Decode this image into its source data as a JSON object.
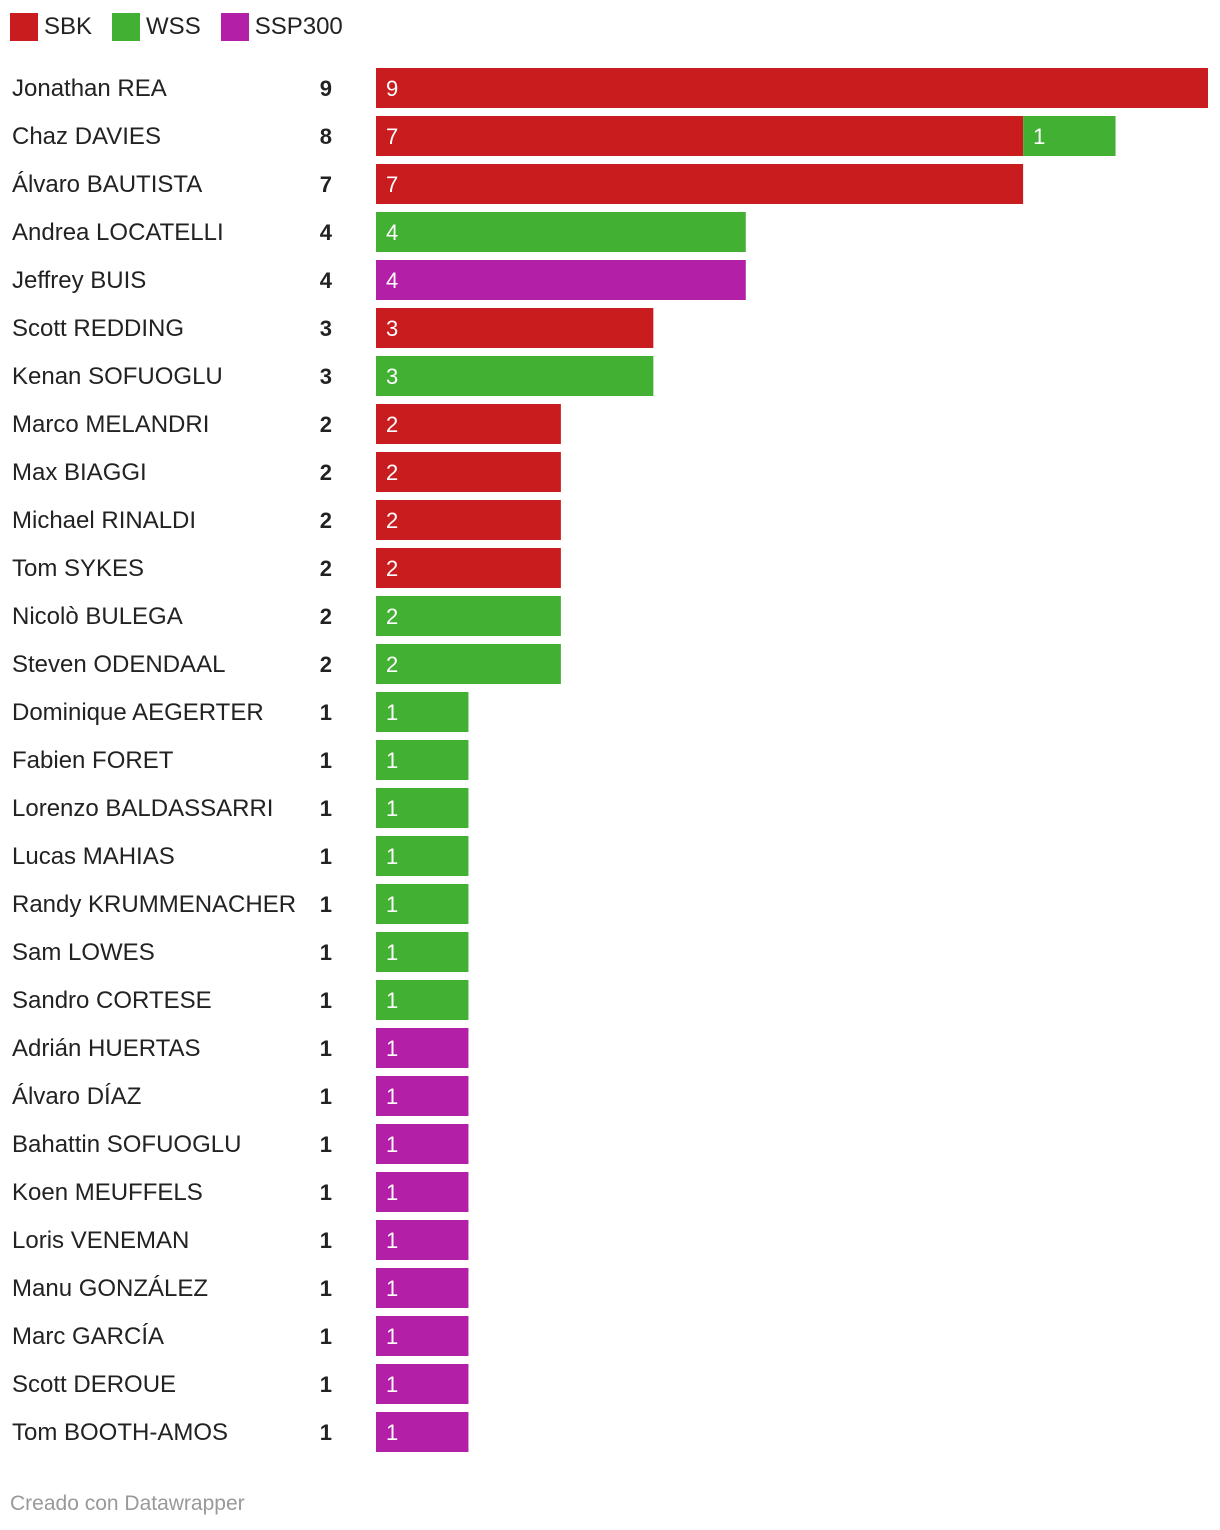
{
  "chart_data": {
    "type": "bar",
    "orientation": "horizontal",
    "stacked": true,
    "legend_position": "top-left",
    "series_keys": [
      "sbk",
      "wss",
      "ssp300"
    ],
    "legend": [
      {
        "key": "sbk",
        "name": "SBK",
        "color": "#c91c1f"
      },
      {
        "key": "wss",
        "name": "WSS",
        "color": "#42b033"
      },
      {
        "key": "ssp300",
        "name": "SSP300",
        "color": "#b41fa8"
      }
    ],
    "rows": [
      {
        "name": "Jonathan REA",
        "total": "9",
        "sbk": 9,
        "wss": 0,
        "ssp300": 0
      },
      {
        "name": "Chaz DAVIES",
        "total": "8",
        "sbk": 7,
        "wss": 1,
        "ssp300": 0
      },
      {
        "name": "Álvaro BAUTISTA",
        "total": "7",
        "sbk": 7,
        "wss": 0,
        "ssp300": 0
      },
      {
        "name": "Andrea LOCATELLI",
        "total": "4",
        "sbk": 0,
        "wss": 4,
        "ssp300": 0
      },
      {
        "name": "Jeffrey BUIS",
        "total": "4",
        "sbk": 0,
        "wss": 0,
        "ssp300": 4
      },
      {
        "name": "Scott REDDING",
        "total": "3",
        "sbk": 3,
        "wss": 0,
        "ssp300": 0
      },
      {
        "name": "Kenan SOFUOGLU",
        "total": "3",
        "sbk": 0,
        "wss": 3,
        "ssp300": 0
      },
      {
        "name": "Marco MELANDRI",
        "total": "2",
        "sbk": 2,
        "wss": 0,
        "ssp300": 0
      },
      {
        "name": "Max BIAGGI",
        "total": "2",
        "sbk": 2,
        "wss": 0,
        "ssp300": 0
      },
      {
        "name": "Michael RINALDI",
        "total": "2",
        "sbk": 2,
        "wss": 0,
        "ssp300": 0
      },
      {
        "name": "Tom SYKES",
        "total": "2",
        "sbk": 2,
        "wss": 0,
        "ssp300": 0
      },
      {
        "name": "Nicolò BULEGA",
        "total": "2",
        "sbk": 0,
        "wss": 2,
        "ssp300": 0
      },
      {
        "name": "Steven ODENDAAL",
        "total": "2",
        "sbk": 0,
        "wss": 2,
        "ssp300": 0
      },
      {
        "name": "Dominique AEGERTER",
        "total": "1",
        "sbk": 0,
        "wss": 1,
        "ssp300": 0
      },
      {
        "name": "Fabien FORET",
        "total": "1",
        "sbk": 0,
        "wss": 1,
        "ssp300": 0
      },
      {
        "name": "Lorenzo BALDASSARRI",
        "total": "1",
        "sbk": 0,
        "wss": 1,
        "ssp300": 0
      },
      {
        "name": "Lucas MAHIAS",
        "total": "1",
        "sbk": 0,
        "wss": 1,
        "ssp300": 0
      },
      {
        "name": "Randy KRUMMENACHER",
        "total": "1",
        "sbk": 0,
        "wss": 1,
        "ssp300": 0
      },
      {
        "name": "Sam LOWES",
        "total": "1",
        "sbk": 0,
        "wss": 1,
        "ssp300": 0
      },
      {
        "name": "Sandro CORTESE",
        "total": "1",
        "sbk": 0,
        "wss": 1,
        "ssp300": 0
      },
      {
        "name": "Adrián HUERTAS",
        "total": "1",
        "sbk": 0,
        "wss": 0,
        "ssp300": 1
      },
      {
        "name": "Álvaro DÍAZ",
        "total": "1",
        "sbk": 0,
        "wss": 0,
        "ssp300": 1
      },
      {
        "name": "Bahattin SOFUOGLU",
        "total": "1",
        "sbk": 0,
        "wss": 0,
        "ssp300": 1
      },
      {
        "name": "Koen MEUFFELS",
        "total": "1",
        "sbk": 0,
        "wss": 0,
        "ssp300": 1
      },
      {
        "name": "Loris VENEMAN",
        "total": "1",
        "sbk": 0,
        "wss": 0,
        "ssp300": 1
      },
      {
        "name": "Manu GONZÁLEZ",
        "total": "1",
        "sbk": 0,
        "wss": 0,
        "ssp300": 1
      },
      {
        "name": "Marc GARCÍA",
        "total": "1",
        "sbk": 0,
        "wss": 0,
        "ssp300": 1
      },
      {
        "name": "Scott DEROUE",
        "total": "1",
        "sbk": 0,
        "wss": 0,
        "ssp300": 1
      },
      {
        "name": "Tom BOOTH-AMOS",
        "total": "1",
        "sbk": 0,
        "wss": 0,
        "ssp300": 1
      }
    ],
    "xlim": [
      0,
      9
    ],
    "grid": false
  },
  "footer": {
    "credit": "Creado con Datawrapper"
  }
}
